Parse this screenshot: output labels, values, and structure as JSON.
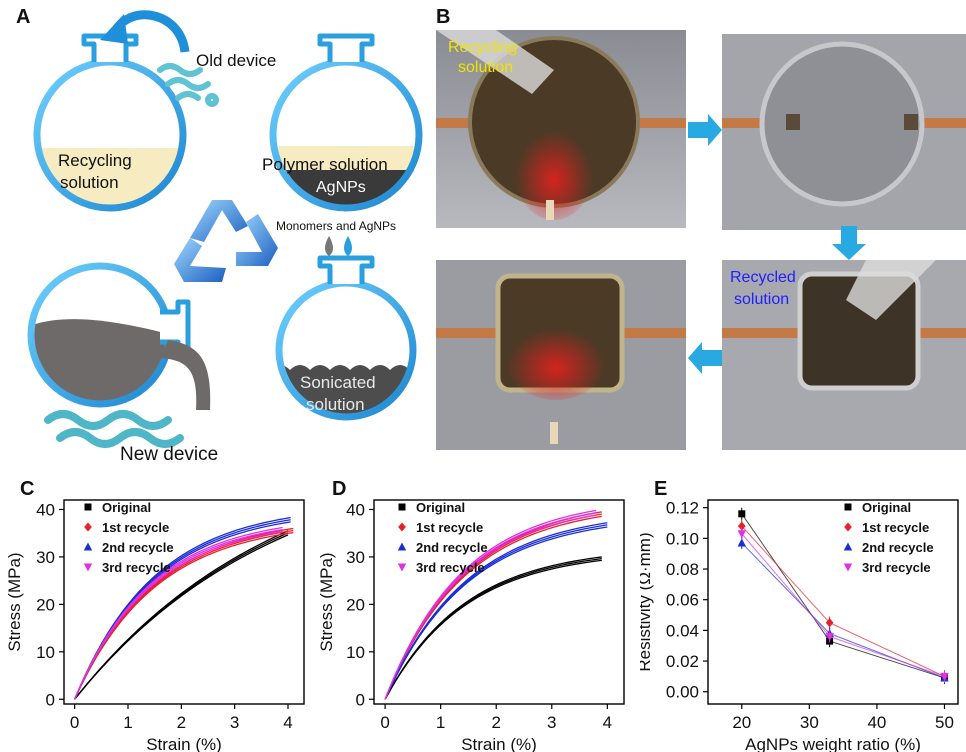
{
  "panels": {
    "a": "A",
    "b": "B",
    "c": "C",
    "d": "D",
    "e": "E"
  },
  "panel_a": {
    "old_device": "Old device",
    "recycling_solution_1": "Recycling",
    "recycling_solution_2": "solution",
    "polymer_solution": "Polymer solution",
    "agnps": "AgNPs",
    "monomers": "Monomers and AgNPs",
    "sonicated_1": "Sonicated",
    "sonicated_2": "solution",
    "new_device": "New device"
  },
  "panel_b": {
    "recycling_1": "Recycling",
    "recycling_2": "solution",
    "recycled_1": "Recycled",
    "recycled_2": "solution"
  },
  "chart_data": [
    {
      "type": "line",
      "panel": "C",
      "xlabel": "Strain (%)",
      "ylabel": "Stress (MPa)",
      "xlim": [
        -0.2,
        4.3
      ],
      "ylim": [
        -1,
        42
      ],
      "xticks": [
        0,
        1,
        2,
        3,
        4
      ],
      "yticks": [
        0,
        10,
        20,
        30,
        40
      ],
      "legend": "top-left",
      "series": [
        {
          "name": "Original",
          "color": "#000000",
          "marker": "square",
          "end": [
            4.0,
            35.5
          ]
        },
        {
          "name": "1st recycle",
          "color": "#e8202a",
          "marker": "diamond",
          "end": [
            4.1,
            36.0
          ]
        },
        {
          "name": "2nd recycle",
          "color": "#1a2ed6",
          "marker": "triangle-up",
          "end": [
            4.05,
            38.3
          ]
        },
        {
          "name": "3rd recycle",
          "color": "#e030e0",
          "marker": "triangle-down",
          "end": [
            3.9,
            36.2
          ]
        }
      ]
    },
    {
      "type": "line",
      "panel": "D",
      "xlabel": "Strain (%)",
      "ylabel": "Stress (MPa)",
      "xlim": [
        -0.2,
        4.3
      ],
      "ylim": [
        -1,
        42
      ],
      "xticks": [
        0,
        1,
        2,
        3,
        4
      ],
      "yticks": [
        0,
        10,
        20,
        30,
        40
      ],
      "legend": "top-left",
      "series": [
        {
          "name": "Original",
          "color": "#000000",
          "marker": "square",
          "end": [
            3.9,
            30.0
          ]
        },
        {
          "name": "1st recycle",
          "color": "#e8202a",
          "marker": "diamond",
          "end": [
            3.9,
            39.5
          ]
        },
        {
          "name": "2nd recycle",
          "color": "#1a2ed6",
          "marker": "triangle-up",
          "end": [
            4.0,
            37.2
          ]
        },
        {
          "name": "3rd recycle",
          "color": "#e030e0",
          "marker": "triangle-down",
          "end": [
            3.8,
            39.8
          ]
        }
      ]
    },
    {
      "type": "line",
      "panel": "E",
      "xlabel": "AgNPs weight ratio (%)",
      "ylabel": "Resistivity (Ω·mm)",
      "xlim": [
        15,
        52
      ],
      "ylim": [
        -0.008,
        0.125
      ],
      "xticks": [
        20,
        30,
        40,
        50
      ],
      "yticks": [
        0.0,
        0.02,
        0.04,
        0.06,
        0.08,
        0.1,
        0.12
      ],
      "ytick_labels": [
        "0.00",
        "0.02",
        "0.04",
        "0.06",
        "0.08",
        "0.10",
        "0.12"
      ],
      "legend": "top-right",
      "x": [
        20,
        33,
        50
      ],
      "series": [
        {
          "name": "Original",
          "color": "#000000",
          "marker": "square",
          "values": [
            0.116,
            0.033,
            0.009
          ]
        },
        {
          "name": "1st recycle",
          "color": "#e8202a",
          "marker": "diamond",
          "values": [
            0.108,
            0.045,
            0.01
          ]
        },
        {
          "name": "2nd recycle",
          "color": "#1a2ed6",
          "marker": "triangle-up",
          "values": [
            0.097,
            0.038,
            0.009
          ]
        },
        {
          "name": "3rd recycle",
          "color": "#e030e0",
          "marker": "triangle-down",
          "values": [
            0.103,
            0.036,
            0.01
          ]
        }
      ]
    }
  ]
}
